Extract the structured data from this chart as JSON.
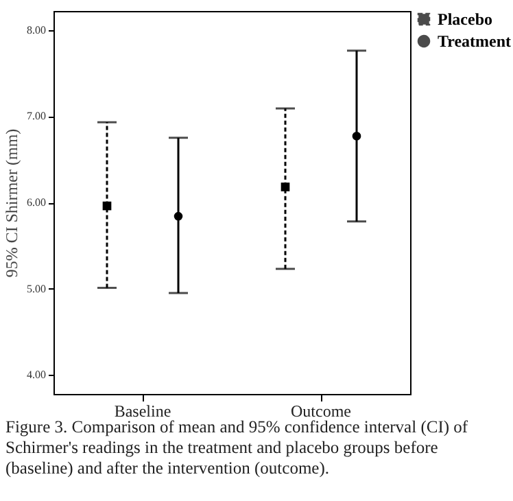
{
  "chart_data": {
    "type": "scatter",
    "ylabel": "95% CI Shirmer (mm)",
    "categories": [
      "Baseline",
      "Outcome"
    ],
    "series": [
      {
        "name": "Placebo",
        "color": "#000000",
        "values": [
          5.96,
          6.18
        ],
        "errors": [
          [
            5.01,
            6.93
          ],
          [
            5.23,
            7.09
          ]
        ],
        "line_style": "dashed",
        "marker": "square"
      },
      {
        "name": "Treatment",
        "color": "#000000",
        "values": [
          5.84,
          6.77
        ],
        "errors": [
          [
            4.95,
            6.75
          ],
          [
            5.78,
            7.76
          ]
        ],
        "line_style": "solid",
        "marker": "circle"
      }
    ],
    "ylim": [
      3.78,
      8.22
    ],
    "yticks": [
      {
        "value": 4,
        "label": "4.00"
      },
      {
        "value": 5,
        "label": "5.00"
      },
      {
        "value": 6,
        "label": "6.00"
      },
      {
        "value": 7,
        "label": "7.00"
      },
      {
        "value": 8,
        "label": "8.00"
      }
    ],
    "grid": false,
    "legend": "top right",
    "annotations": [
      "Figure 3. Comparison of mean and 95% confidence interval (CI) of Schirmer's readings in the treatment and placebo groups before (baseline) and after the intervention (outcome)."
    ]
  }
}
